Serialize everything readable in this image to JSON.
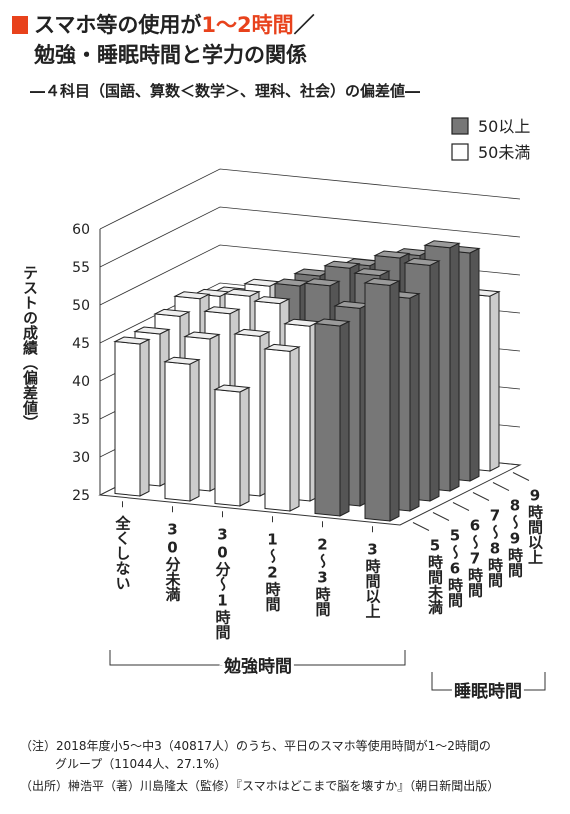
{
  "chart_data": {
    "type": "bar3d",
    "title_parts": [
      "スマホ等の使用が",
      "1～2時間",
      "／"
    ],
    "title_line2": "勉強・睡眠時間と学力の関係",
    "subtitle": "―４科目（国語、算数＜数学＞、理科、社会）の偏差値―",
    "y_label": "テストの成績（偏差値）",
    "x_label": "勉強時間",
    "depth_label": "睡眠時間",
    "categories": [
      "全くしない",
      "30分未満",
      "30分～1時間",
      "1～2時間",
      "2～3時間",
      "3時間以上"
    ],
    "series": [
      {
        "name": "5時間未満",
        "values": [
          45,
          43,
          40,
          46,
          50,
          56
        ]
      },
      {
        "name": "5～6時間",
        "values": [
          45,
          45,
          46,
          48,
          51,
          53
        ]
      },
      {
        "name": "6～7時間",
        "values": [
          46,
          47,
          49,
          52,
          54,
          56
        ]
      },
      {
        "name": "7～8時間",
        "values": [
          47,
          48,
          50,
          53,
          55,
          57
        ]
      },
      {
        "name": "8～9時間",
        "values": [
          46,
          48,
          50,
          52,
          54,
          55
        ]
      },
      {
        "name": "9時間以上",
        "values": [
          45,
          46,
          48,
          50,
          52,
          48
        ]
      }
    ],
    "threshold": 50,
    "legend": [
      {
        "label": "50以上",
        "color": "#777777"
      },
      {
        "label": "50未満",
        "color": "#ffffff"
      }
    ],
    "ylim": [
      25,
      60
    ],
    "yticks": [
      25,
      30,
      35,
      40,
      45,
      50,
      55,
      60
    ],
    "grid": true,
    "notes": [
      "（注）2018年度小5～中3（40817人）のうち、平日のスマホ等使用時間が1～2時間の",
      "グループ（11044人、27.1%）",
      "（出所）榊浩平（著）川島隆太（監修）『スマホはどこまで脳を壊すか』（朝日新聞出版）"
    ]
  }
}
